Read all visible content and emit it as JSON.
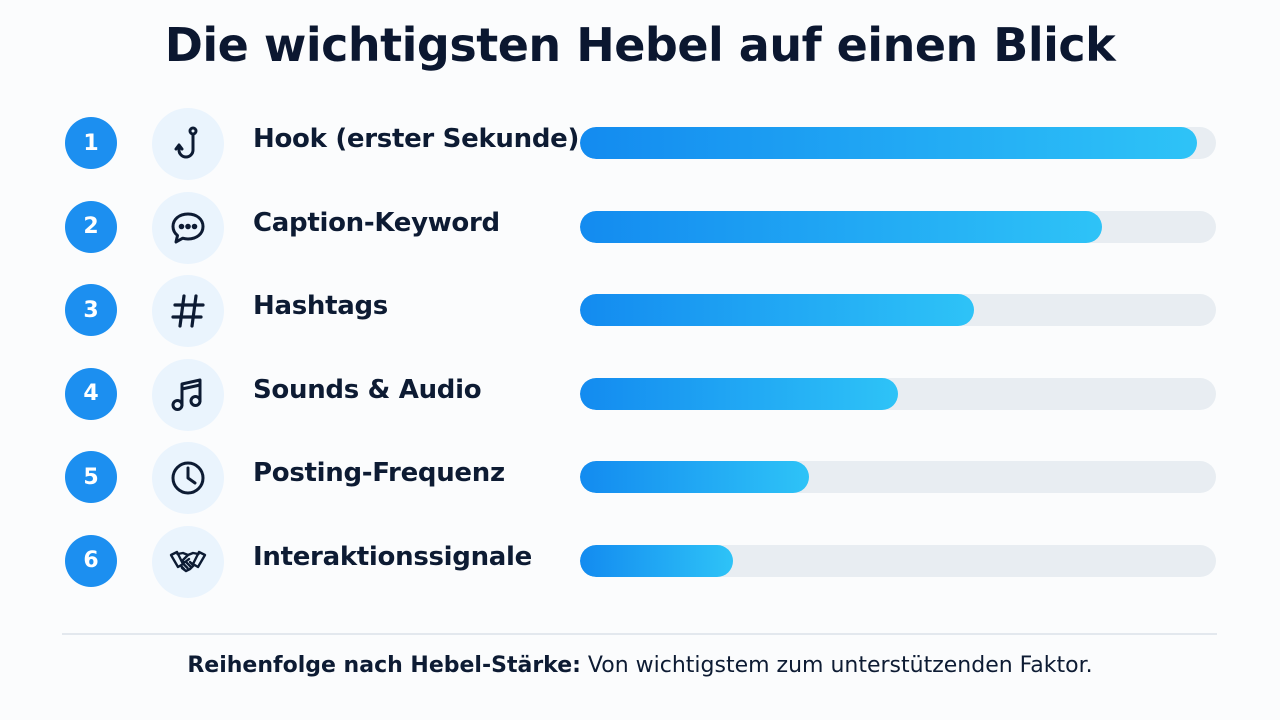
{
  "title": "Die wichtigsten Hebel auf einen Blick",
  "chart_data": {
    "type": "bar",
    "orientation": "horizontal",
    "title": "Die wichtigsten Hebel auf einen Blick",
    "categories": [
      "Hook (erster Sekunde)",
      "Caption-Keyword",
      "Hashtags",
      "Sounds & Audio",
      "Posting-Frequenz",
      "Interaktionssignale"
    ],
    "ranks": [
      "1",
      "2",
      "3",
      "4",
      "5",
      "6"
    ],
    "icons": [
      "hook-icon",
      "speech-bubble-icon",
      "hashtag-icon",
      "music-note-icon",
      "clock-icon",
      "handshake-icon"
    ],
    "values": [
      0.97,
      0.82,
      0.62,
      0.5,
      0.36,
      0.24
    ],
    "value_unit": "fraction of bar",
    "xlim": [
      0,
      1
    ],
    "bar_colors": [
      "#138bf0",
      "#2ec3f7"
    ],
    "track_color": "#e8edf2",
    "rank_badge_color": "#1c8ff0",
    "grid": false,
    "legend": "none"
  },
  "footer": {
    "bold": "Reihenfolge nach Hebel-Stärke:",
    "text": " Von wichtigstem zum unterstützenden Faktor."
  }
}
